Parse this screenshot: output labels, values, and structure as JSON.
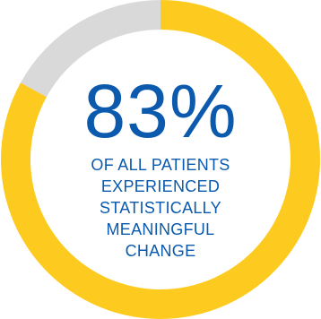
{
  "chart_data": {
    "type": "pie",
    "style": "donut",
    "slices": [
      {
        "value": 83,
        "color": "#FDCB1F"
      },
      {
        "value": 17,
        "color": "#D9D9D9"
      }
    ],
    "value_label": "83%",
    "caption_lines": [
      "OF ALL PATIENTS",
      "EXPERIENCED",
      "STATISTICALLY",
      "MEANINGFUL",
      "CHANGE"
    ]
  },
  "colors": {
    "accent": "#FDCB1F",
    "remainder": "#D9D9D9",
    "text": "#0B5AAE"
  }
}
